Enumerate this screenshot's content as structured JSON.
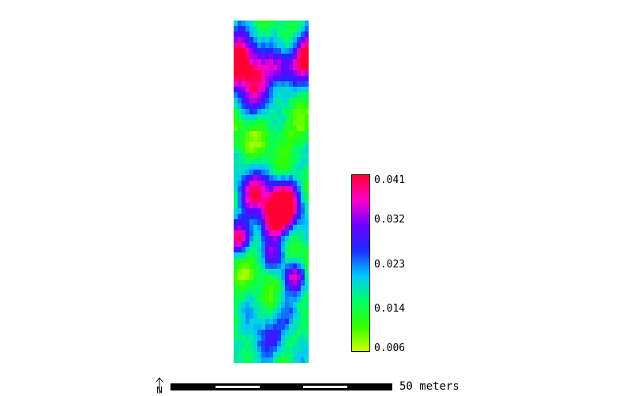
{
  "legend": {
    "ramp_colors": [
      "#ff0033",
      "#ff00cc",
      "#6a00ff",
      "#1a2cff",
      "#00c8ff",
      "#00ff66",
      "#33ff00",
      "#ccff00"
    ],
    "labels": [
      "0.041",
      "0.032",
      "0.023",
      "0.014",
      "0.006"
    ]
  },
  "scale": {
    "label": "50 meters"
  },
  "north_arrow": {
    "icon": "north-arrow-icon",
    "label": "N"
  }
}
